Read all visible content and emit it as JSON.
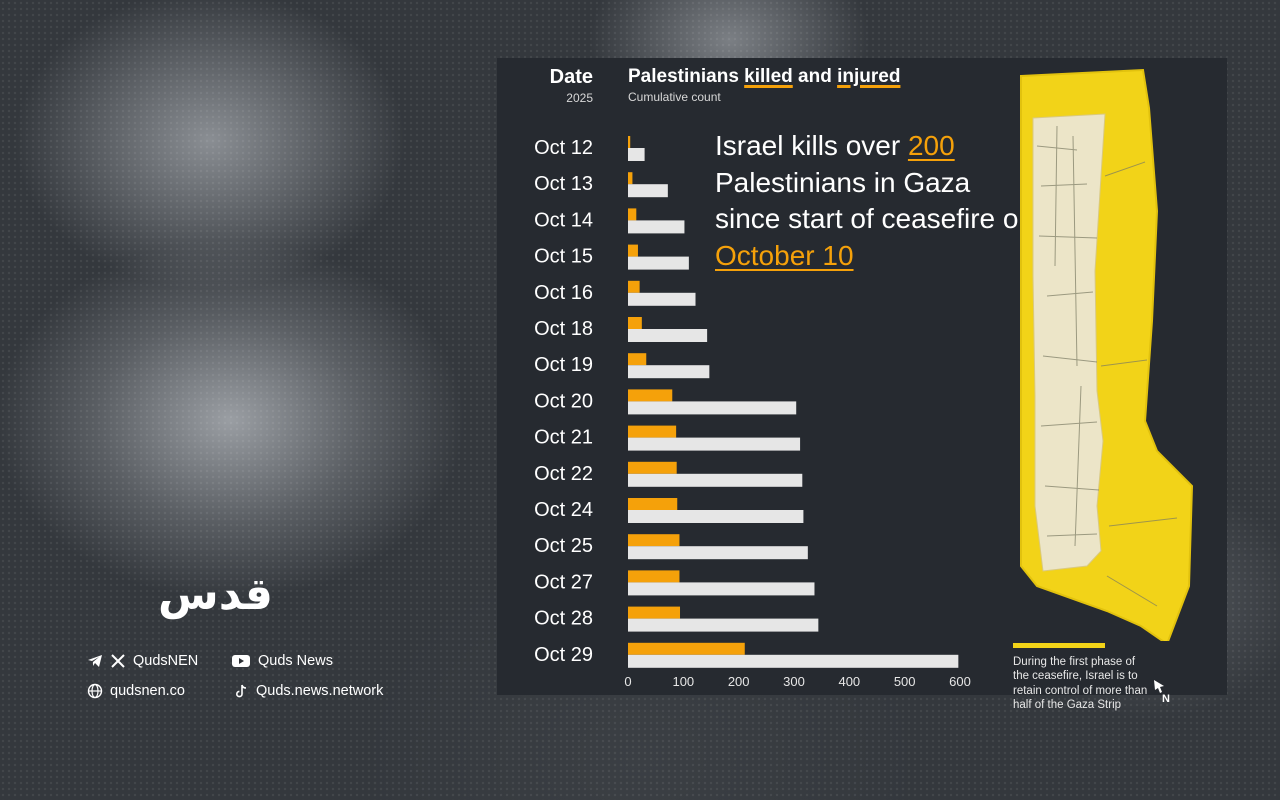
{
  "header": {
    "date_label": "Date",
    "year": "2025",
    "title_pre": "Palestinians ",
    "title_killed": "killed",
    "title_mid": " and ",
    "title_injured": "injured",
    "subtitle": "Cumulative count"
  },
  "headline": {
    "pre": "Israel kills over ",
    "number": "200",
    "mid": " Palestinians  in Gaza since start of ceasefire on ",
    "date": "October 10"
  },
  "legend_text": "During the first phase of the ceasefire, Israel is to retain control of more than half of the Gaza Strip",
  "north_label": "N",
  "logo_text": "قدس",
  "social": {
    "telegram_x_handle": "QudsNEN",
    "youtube": "Quds News",
    "website": "qudsnen.co",
    "tiktok": "Quds.news.network"
  },
  "colors": {
    "killed": "#f5a10a",
    "injured": "#e6e6e6",
    "panel": "#262a30",
    "zone": "#f2d318"
  },
  "chart_data": {
    "type": "bar",
    "orientation": "horizontal",
    "categories": [
      "Oct 12",
      "Oct 13",
      "Oct 14",
      "Oct 15",
      "Oct 16",
      "Oct 18",
      "Oct 19",
      "Oct 20",
      "Oct 21",
      "Oct 22",
      "Oct 24",
      "Oct 25",
      "Oct 27",
      "Oct 28",
      "Oct 29"
    ],
    "series": [
      {
        "name": "killed",
        "color": "#f5a10a",
        "values": [
          4,
          8,
          15,
          18,
          21,
          25,
          33,
          80,
          87,
          88,
          89,
          93,
          93,
          94,
          211
        ]
      },
      {
        "name": "injured",
        "color": "#e6e6e6",
        "values": [
          30,
          72,
          102,
          110,
          122,
          143,
          147,
          304,
          311,
          315,
          317,
          325,
          337,
          344,
          597
        ]
      }
    ],
    "xticks": [
      0,
      100,
      200,
      300,
      400,
      500,
      600
    ],
    "xlim": [
      0,
      600
    ],
    "grid": false
  }
}
